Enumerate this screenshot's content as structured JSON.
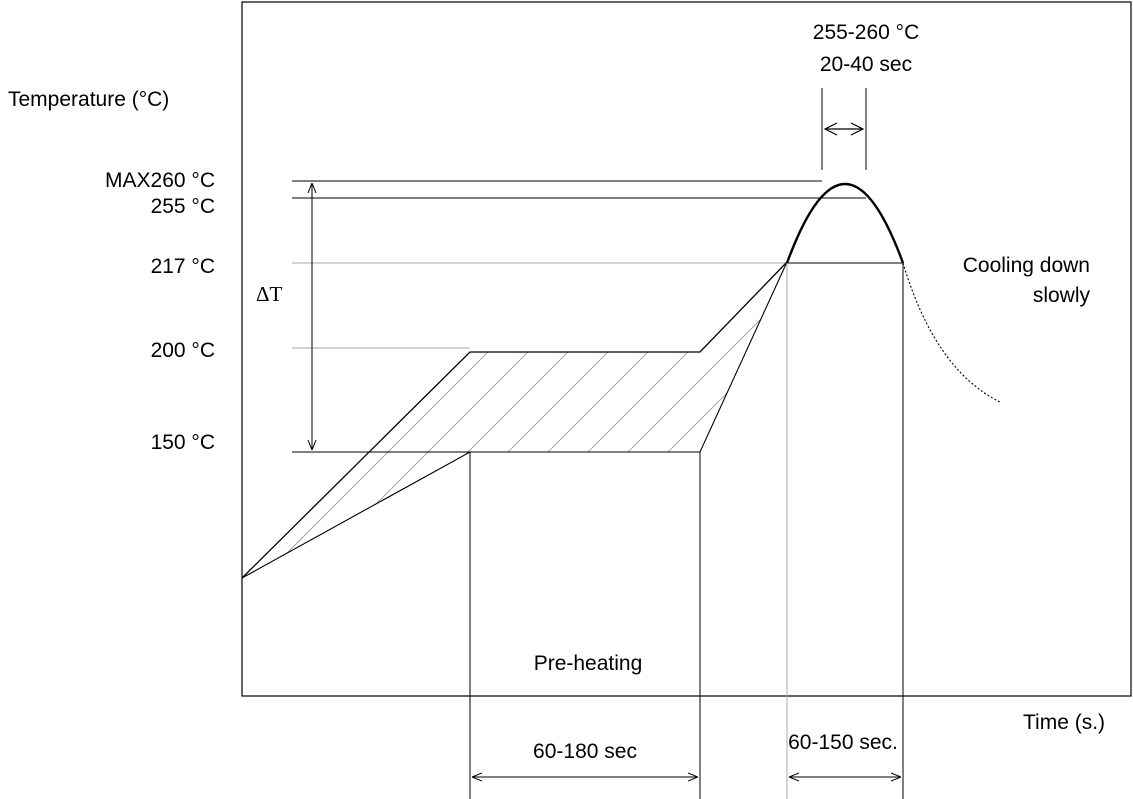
{
  "axes": {
    "y_label": "Temperature (°C)",
    "x_label": "Time (s.)"
  },
  "temperature_levels": {
    "max": "MAX260 °C",
    "t255": "255 °C",
    "t217": "217 °C",
    "t200": "200 °C",
    "t150": "150 °C"
  },
  "annotations": {
    "peak_temp_range": "255-260 °C",
    "peak_time_range": "20-40 sec",
    "delta_t": "ΔT",
    "cooling_line1": "Cooling down",
    "cooling_line2": "slowly",
    "preheating": "Pre-heating",
    "preheat_duration": "60-180 sec",
    "reflow_duration": "60-150 sec."
  },
  "colors": {
    "line": "#000000",
    "guide": "#aaaaaa",
    "background": "#ffffff"
  }
}
